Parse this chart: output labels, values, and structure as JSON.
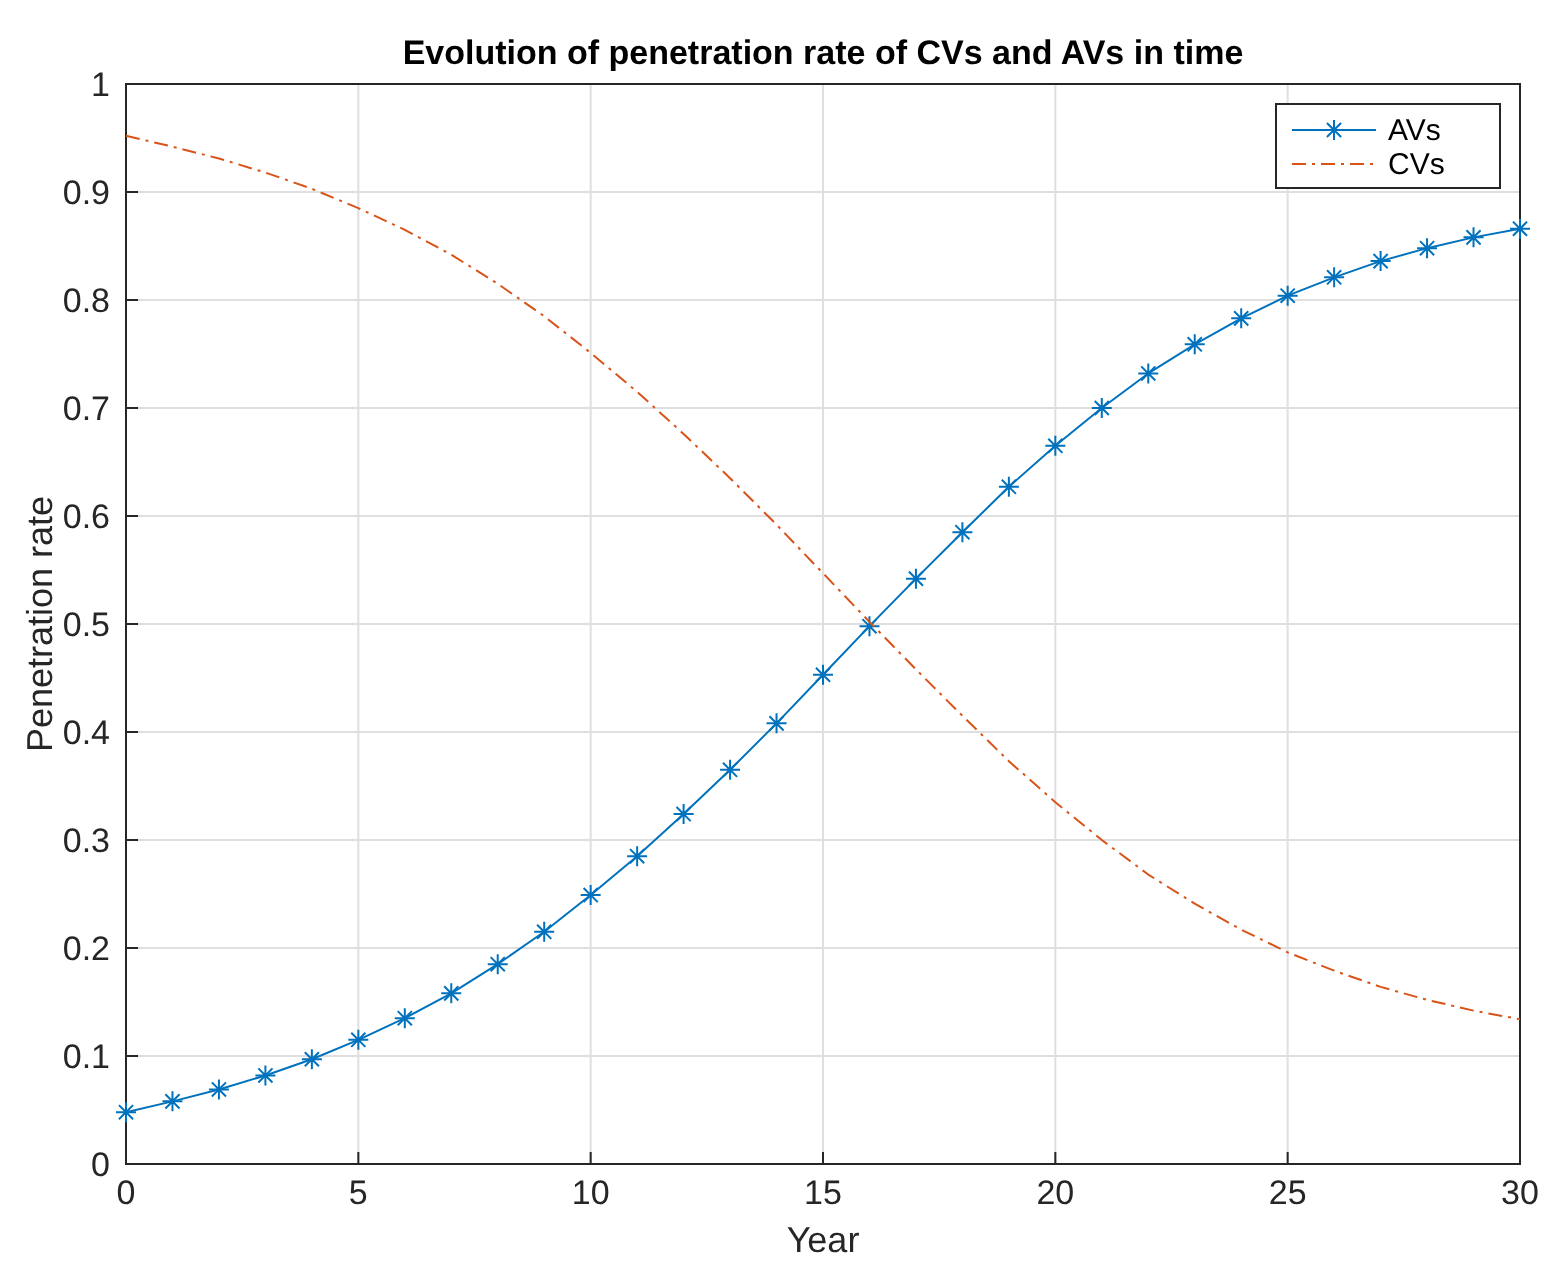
{
  "chart_data": {
    "type": "line",
    "title": "Evolution of penetration rate of CVs and AVs in time",
    "xlabel": "Year",
    "ylabel": "Penetration rate",
    "x": [
      0,
      1,
      2,
      3,
      4,
      5,
      6,
      7,
      8,
      9,
      10,
      11,
      12,
      13,
      14,
      15,
      16,
      17,
      18,
      19,
      20,
      21,
      22,
      23,
      24,
      25,
      26,
      27,
      28,
      29,
      30
    ],
    "series": [
      {
        "name": "AVs",
        "color": "#0072bd",
        "marker": "cross",
        "line_style": "solid",
        "values": [
          0.048,
          0.058,
          0.069,
          0.082,
          0.097,
          0.115,
          0.135,
          0.158,
          0.185,
          0.215,
          0.249,
          0.285,
          0.324,
          0.365,
          0.408,
          0.453,
          0.498,
          0.542,
          0.585,
          0.627,
          0.665,
          0.7,
          0.732,
          0.759,
          0.783,
          0.804,
          0.821,
          0.836,
          0.848,
          0.858,
          0.866
        ]
      },
      {
        "name": "CVs",
        "color": "#d95319",
        "marker": "none",
        "line_style": "dashdot",
        "values": [
          0.952,
          0.942,
          0.931,
          0.918,
          0.903,
          0.885,
          0.865,
          0.842,
          0.815,
          0.785,
          0.751,
          0.715,
          0.676,
          0.635,
          0.592,
          0.547,
          0.502,
          0.458,
          0.415,
          0.373,
          0.335,
          0.3,
          0.268,
          0.241,
          0.217,
          0.196,
          0.179,
          0.164,
          0.152,
          0.142,
          0.134
        ]
      }
    ],
    "xlim": [
      0,
      30
    ],
    "xticks": [
      0,
      5,
      10,
      15,
      20,
      25,
      30
    ],
    "ylim": [
      0,
      1
    ],
    "yticks": [
      0,
      0.1,
      0.2,
      0.3,
      0.4,
      0.5,
      0.6,
      0.7,
      0.8,
      0.9,
      1
    ],
    "grid": true,
    "legend": "top right"
  }
}
